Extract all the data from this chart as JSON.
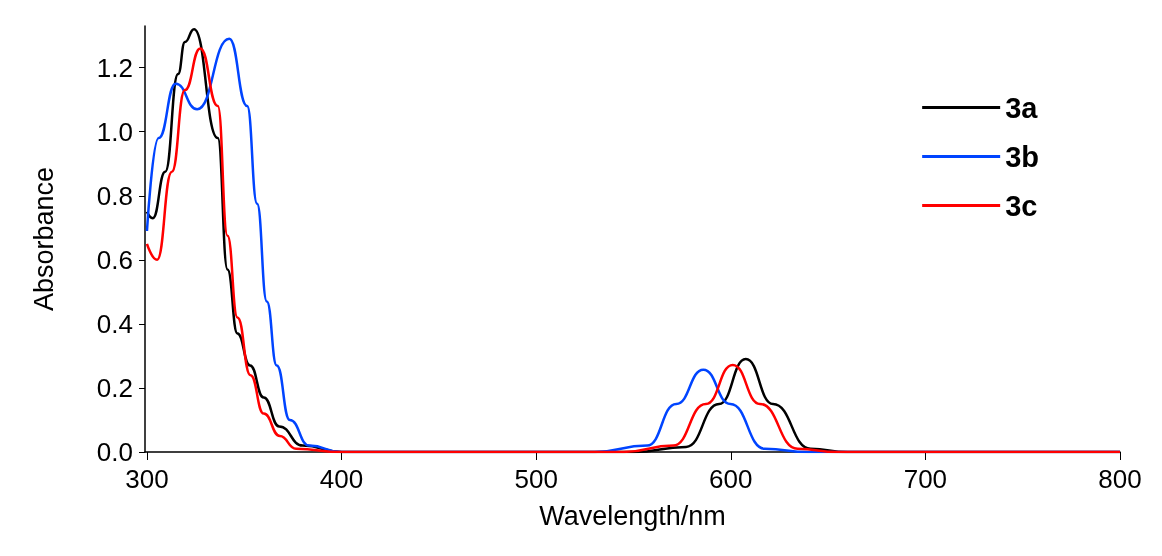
{
  "chart_data": {
    "type": "line",
    "xlabel": "Wavelength/nm",
    "ylabel": "Absorbance",
    "xlim": [
      299,
      800
    ],
    "ylim": [
      0,
      1.33
    ],
    "xticks": [
      300,
      400,
      500,
      600,
      700,
      800
    ],
    "yticks": [
      {
        "value": 0,
        "label": "0.0"
      },
      {
        "value": 0.2,
        "label": "0.2"
      },
      {
        "value": 0.4,
        "label": "0.4"
      },
      {
        "value": 0.6,
        "label": "0.6"
      },
      {
        "value": 0.8,
        "label": "0.8"
      },
      {
        "value": 1,
        "label": "1.0"
      },
      {
        "value": 1.2,
        "label": "1.2"
      }
    ],
    "grid": false,
    "legend": "top right",
    "marker": "none",
    "line_style": "solid",
    "series": [
      {
        "name": "3a",
        "color": "#000000",
        "x": [
          300,
          303,
          309.4,
          316,
          319.5,
          324.2,
          336.4,
          341.4,
          346.5,
          353,
          360,
          368,
          380,
          400,
          550,
          577,
          594,
          607.7,
          621.7,
          641,
          660,
          800
        ],
        "values": [
          0.75,
          0.73,
          0.875,
          1.18,
          1.28,
          1.32,
          0.98,
          0.57,
          0.37,
          0.27,
          0.17,
          0.08,
          0.02,
          0,
          0,
          0.016,
          0.15,
          0.29,
          0.15,
          0.01,
          0,
          0
        ]
      },
      {
        "name": "3b",
        "color": "#0044ff",
        "x": [
          300,
          306,
          314.8,
          325.8,
          342.3,
          351.5,
          356.6,
          361.6,
          366.7,
          373.4,
          383.4,
          400,
          530,
          557,
          572,
          585.9,
          599.8,
          617.5,
          640,
          800
        ],
        "values": [
          0.69,
          0.98,
          1.15,
          1.07,
          1.29,
          1.08,
          0.775,
          0.47,
          0.27,
          0.1,
          0.02,
          0,
          0,
          0.02,
          0.15,
          0.257,
          0.15,
          0.01,
          0,
          0
        ]
      },
      {
        "name": "3c",
        "color": "#ff0000",
        "x": [
          300,
          305.2,
          312.8,
          319.5,
          327.4,
          336.4,
          341.4,
          346.5,
          353.2,
          360,
          368.3,
          376.6,
          400,
          545,
          570.4,
          587.2,
          601,
          615,
          634.3,
          655,
          800
        ],
        "values": [
          0.65,
          0.6,
          0.875,
          1.13,
          1.26,
          1.08,
          0.675,
          0.42,
          0.24,
          0.12,
          0.05,
          0.01,
          0,
          0,
          0.02,
          0.15,
          0.272,
          0.15,
          0.01,
          0,
          0
        ]
      }
    ]
  }
}
